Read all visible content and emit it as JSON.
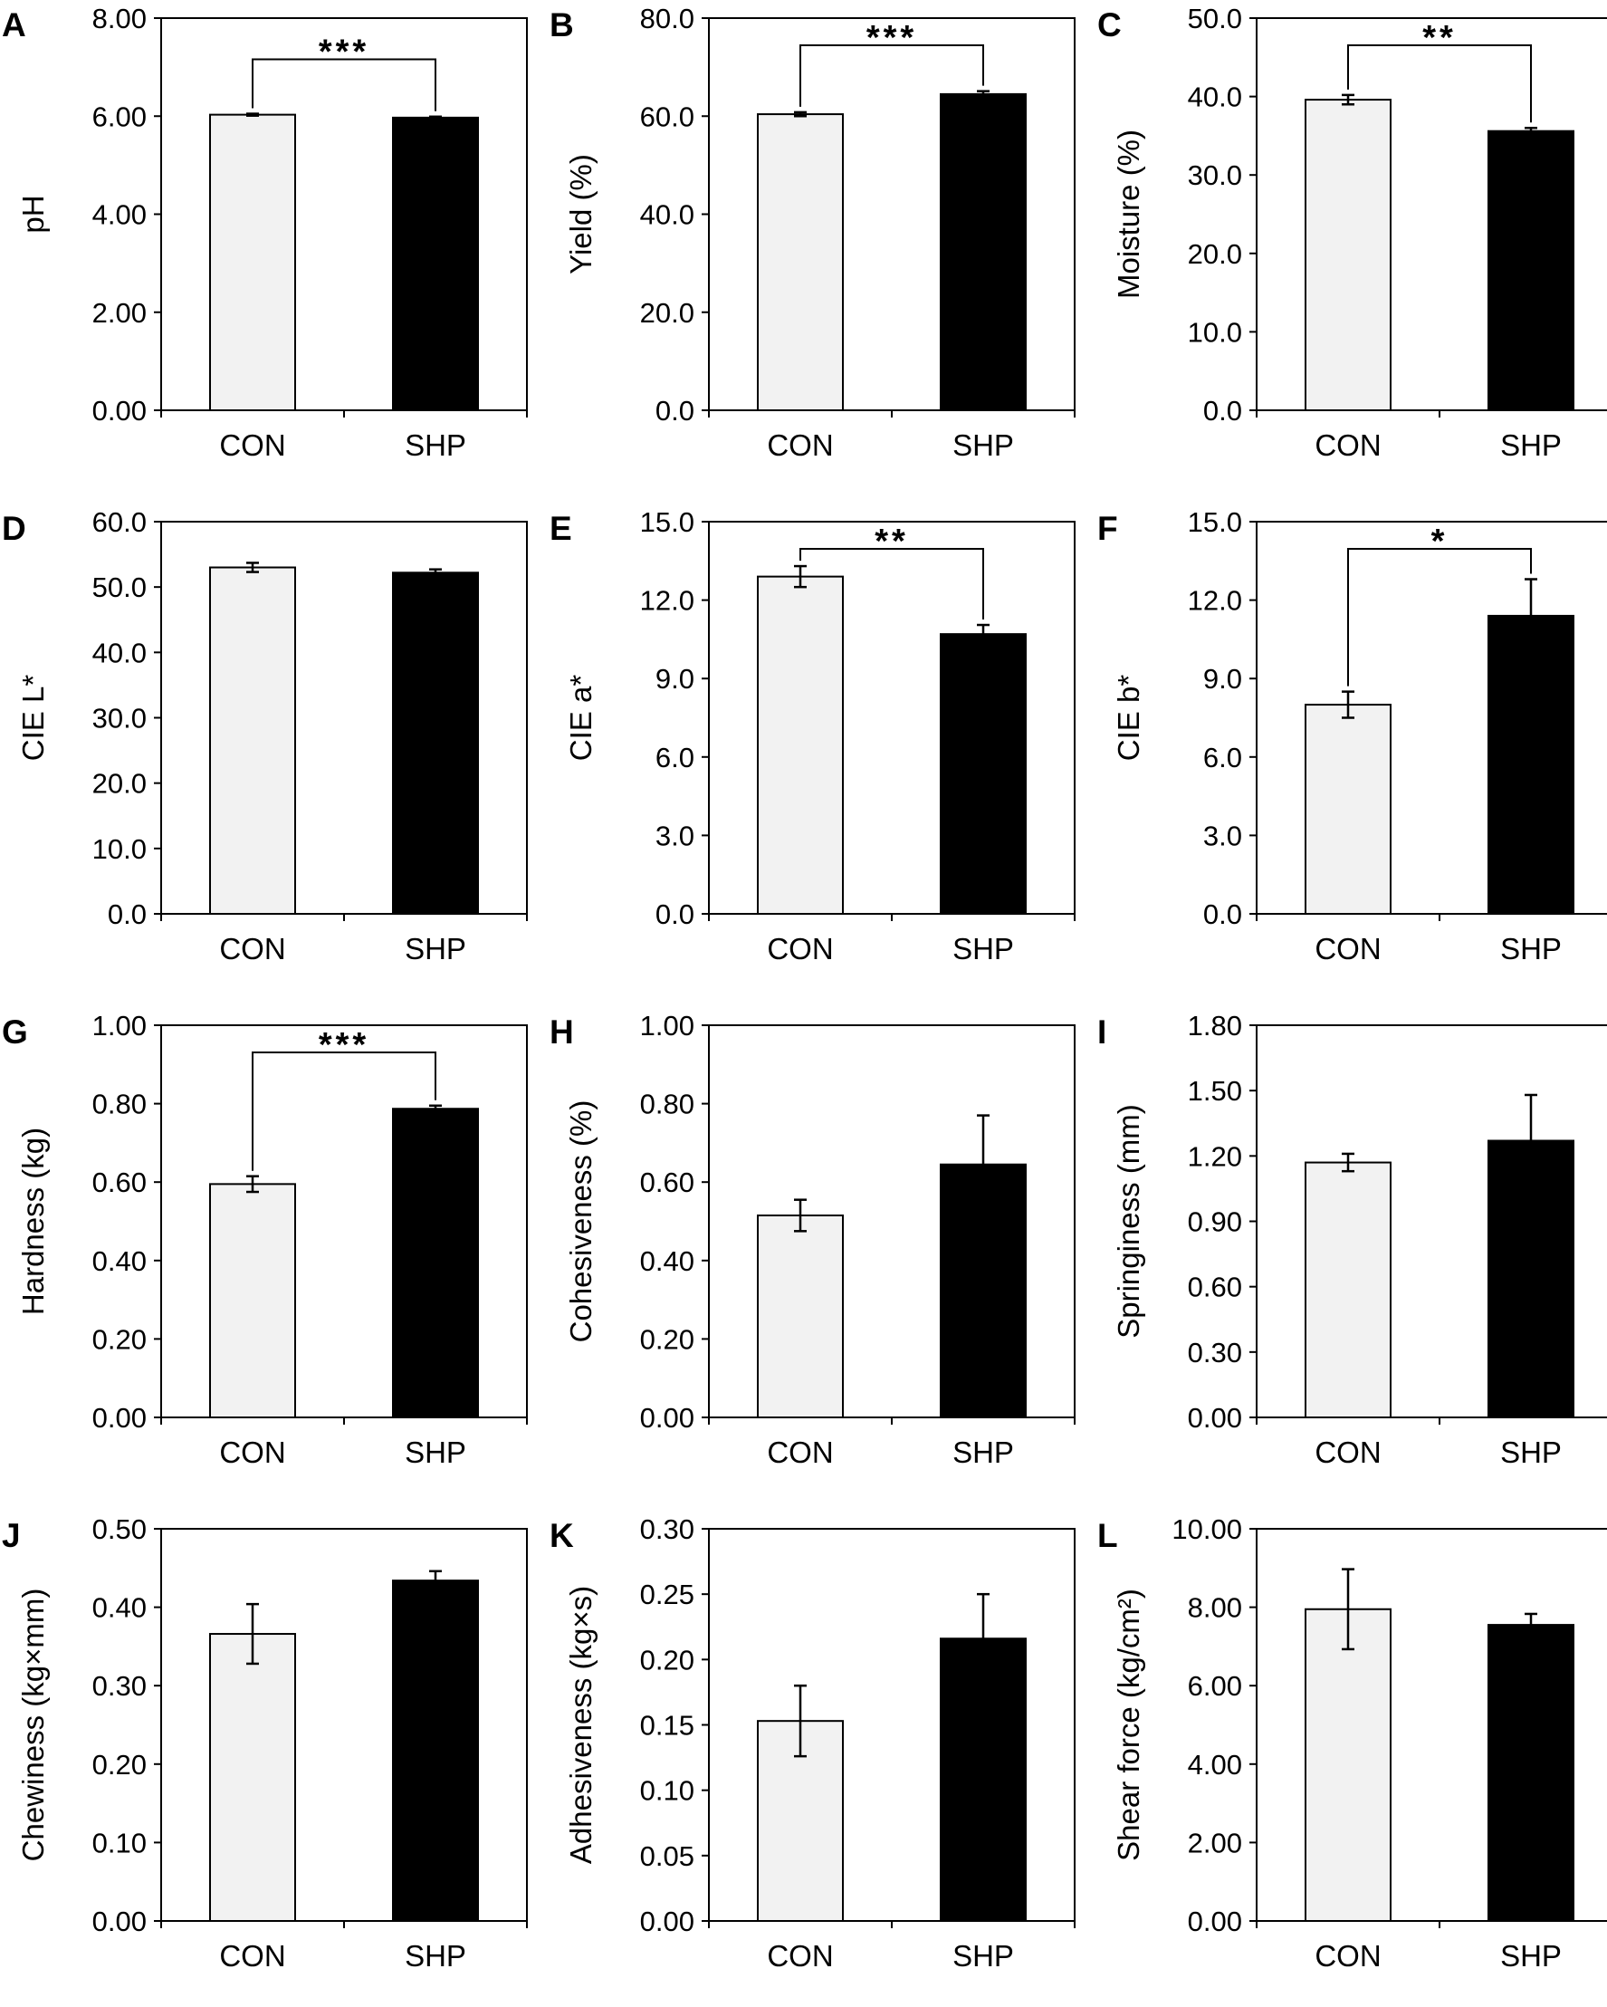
{
  "figure": {
    "colors": {
      "CON": "#f2f2f2",
      "SHP": "#000000",
      "axis": "#000000"
    }
  },
  "chart_data": [
    {
      "panel_letter": "A",
      "type": "bar",
      "ylabel": "pH",
      "categories": [
        "CON",
        "SHP"
      ],
      "values": [
        6.03,
        5.97
      ],
      "errors": [
        0.02,
        0.02
      ],
      "ylim": [
        0,
        8
      ],
      "yticks": [
        "0.00",
        "2.00",
        "4.00",
        "6.00",
        "8.00"
      ],
      "significance": "***"
    },
    {
      "panel_letter": "B",
      "type": "bar",
      "ylabel": "Yield (%)",
      "categories": [
        "CON",
        "SHP"
      ],
      "values": [
        60.4,
        64.5
      ],
      "errors": [
        0.4,
        0.6
      ],
      "ylim": [
        0,
        80
      ],
      "yticks": [
        "0.0",
        "20.0",
        "40.0",
        "60.0",
        "80.0"
      ],
      "significance": "***"
    },
    {
      "panel_letter": "C",
      "type": "bar",
      "ylabel": "Moisture (%)",
      "categories": [
        "CON",
        "SHP"
      ],
      "values": [
        39.6,
        35.6
      ],
      "errors": [
        0.6,
        0.4
      ],
      "ylim": [
        0,
        50
      ],
      "yticks": [
        "0.0",
        "10.0",
        "20.0",
        "30.0",
        "40.0",
        "50.0"
      ],
      "significance": "**"
    },
    {
      "panel_letter": "D",
      "type": "bar",
      "ylabel": "CIE L*",
      "categories": [
        "CON",
        "SHP"
      ],
      "values": [
        53.0,
        52.2
      ],
      "errors": [
        0.7,
        0.5
      ],
      "ylim": [
        0,
        60
      ],
      "yticks": [
        "0.0",
        "10.0",
        "20.0",
        "30.0",
        "40.0",
        "50.0",
        "60.0"
      ],
      "significance": ""
    },
    {
      "panel_letter": "E",
      "type": "bar",
      "ylabel": "CIE a*",
      "categories": [
        "CON",
        "SHP"
      ],
      "values": [
        12.9,
        10.7
      ],
      "errors": [
        0.4,
        0.35
      ],
      "ylim": [
        0,
        15
      ],
      "yticks": [
        "0.0",
        "3.0",
        "6.0",
        "9.0",
        "12.0",
        "15.0"
      ],
      "significance": "**"
    },
    {
      "panel_letter": "F",
      "type": "bar",
      "ylabel": "CIE b*",
      "categories": [
        "CON",
        "SHP"
      ],
      "values": [
        8.0,
        11.4
      ],
      "errors": [
        0.5,
        1.4
      ],
      "ylim": [
        0,
        15
      ],
      "yticks": [
        "0.0",
        "3.0",
        "6.0",
        "9.0",
        "12.0",
        "15.0"
      ],
      "significance": "*"
    },
    {
      "panel_letter": "G",
      "type": "bar",
      "ylabel": "Hardness (kg)",
      "categories": [
        "CON",
        "SHP"
      ],
      "values": [
        0.595,
        0.787
      ],
      "errors": [
        0.02,
        0.008
      ],
      "ylim": [
        0,
        1
      ],
      "yticks": [
        "0.00",
        "0.20",
        "0.40",
        "0.60",
        "0.80",
        "1.00"
      ],
      "significance": "***"
    },
    {
      "panel_letter": "H",
      "type": "bar",
      "ylabel": "Cohesiveness (%)",
      "categories": [
        "CON",
        "SHP"
      ],
      "values": [
        0.515,
        0.645
      ],
      "errors": [
        0.04,
        0.125
      ],
      "ylim": [
        0,
        1
      ],
      "yticks": [
        "0.00",
        "0.20",
        "0.40",
        "0.60",
        "0.80",
        "1.00"
      ],
      "significance": ""
    },
    {
      "panel_letter": "I",
      "type": "bar",
      "ylabel": "Springiness (mm)",
      "categories": [
        "CON",
        "SHP"
      ],
      "values": [
        1.17,
        1.27
      ],
      "errors": [
        0.04,
        0.21
      ],
      "ylim": [
        0,
        1.8
      ],
      "yticks": [
        "0.00",
        "0.30",
        "0.60",
        "0.90",
        "1.20",
        "1.50",
        "1.80"
      ],
      "significance": ""
    },
    {
      "panel_letter": "J",
      "type": "bar",
      "ylabel": "Chewiness (kg×mm)",
      "categories": [
        "CON",
        "SHP"
      ],
      "values": [
        0.366,
        0.434
      ],
      "errors": [
        0.038,
        0.012
      ],
      "ylim": [
        0,
        0.5
      ],
      "yticks": [
        "0.00",
        "0.10",
        "0.20",
        "0.30",
        "0.40",
        "0.50"
      ],
      "significance": ""
    },
    {
      "panel_letter": "K",
      "type": "bar",
      "ylabel": "Adhesiveness (kg×s)",
      "categories": [
        "CON",
        "SHP"
      ],
      "values": [
        0.153,
        0.216
      ],
      "errors": [
        0.027,
        0.034
      ],
      "ylim": [
        0,
        0.3
      ],
      "yticks": [
        "0.00",
        "0.05",
        "0.10",
        "0.15",
        "0.20",
        "0.25",
        "0.30"
      ],
      "significance": ""
    },
    {
      "panel_letter": "L",
      "type": "bar",
      "ylabel": "Shear force (kg/cm²)",
      "categories": [
        "CON",
        "SHP"
      ],
      "values": [
        7.95,
        7.55
      ],
      "errors": [
        1.02,
        0.28
      ],
      "ylim": [
        0,
        10
      ],
      "yticks": [
        "0.00",
        "2.00",
        "4.00",
        "6.00",
        "8.00",
        "10.00"
      ],
      "significance": ""
    }
  ]
}
